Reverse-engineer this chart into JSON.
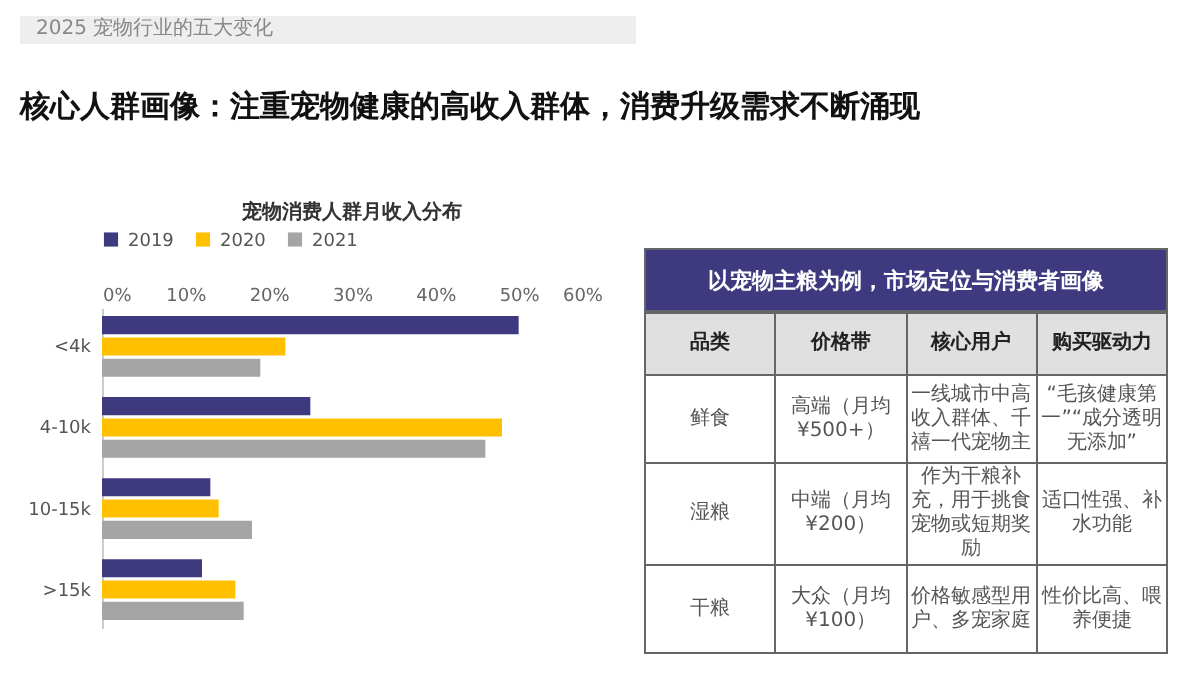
{
  "chart_data": [
    {
      "type": "other",
      "annotations": [
        "2025 宠物行业的五大变化",
        "核心人群画像：注重宠物健康的高收入群体，消费升级需求不断涌现"
      ]
    },
    {
      "type": "bar",
      "orientation": "horizontal",
      "title": "宠物消费人群月收入分布",
      "categories": [
        "<4k",
        "4-10k",
        "10-15k",
        ">15k"
      ],
      "series": [
        {
          "name": "2019",
          "color": "#3f3a80",
          "values": [
            50,
            25,
            13,
            12
          ]
        },
        {
          "name": "2020",
          "color": "#ffc000",
          "values": [
            22,
            48,
            14,
            16
          ]
        },
        {
          "name": "2021",
          "color": "#a5a5a5",
          "values": [
            19,
            46,
            18,
            17
          ]
        }
      ],
      "xlim": [
        0,
        60
      ],
      "xticks": [
        {
          "value": 0,
          "label": "0%"
        },
        {
          "value": 10,
          "label": "10%"
        },
        {
          "value": 20,
          "label": "20%"
        },
        {
          "value": 30,
          "label": "30%"
        },
        {
          "value": 40,
          "label": "40%"
        },
        {
          "value": 50,
          "label": "50%"
        },
        {
          "value": 60,
          "label": "60%"
        }
      ],
      "legend": "top",
      "grid": false
    },
    {
      "type": "other",
      "title": "以宠物主粮为例，市场定位与消费者画像",
      "annotations": [
        "品类",
        "价格带",
        "核心用户",
        "购买驱动力",
        "鲜食",
        "高端（月均¥500+）",
        "一线城市中高收入群体、千禧一代宠物主",
        "“毛孩健康第一”“成分透明无添加”",
        "湿粮",
        "中端（月均¥200）",
        "作为干粮补充，用于挑食宠物或短期奖励",
        "适口性强、补水功能",
        "干粮",
        "大众（月均¥100）",
        "价格敏感型用户、多宠家庭",
        "性价比高、喂养便捷"
      ]
    }
  ]
}
